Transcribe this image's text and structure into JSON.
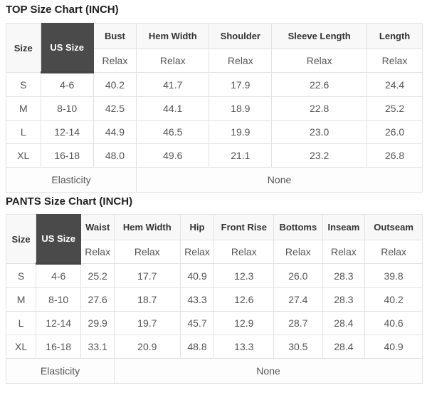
{
  "colors": {
    "page_background": "#ffffff",
    "us_size_header_bg": "#4a4a4a",
    "us_size_header_text": "#ffffff",
    "header_row_bg": "#f8f8f8",
    "header_text": "#333333",
    "cell_text": "#555555",
    "title_text": "#1f1f1f",
    "border": "#e2e2e2"
  },
  "tables": [
    {
      "title": "TOP Size Chart (INCH)",
      "corner": {
        "size_label": "Size",
        "us_size_label": "US Size"
      },
      "fit_label": "Relax",
      "columns": [
        "Bust",
        "Hem Width",
        "Shoulder",
        "Sleeve Length",
        "Length"
      ],
      "col_widths": [
        "8.3%",
        "12.7%",
        "10.3%",
        "17.5%",
        "15.0%",
        "22.9%",
        "13.3%"
      ],
      "rows": [
        {
          "size": "S",
          "us_size": "4-6",
          "values": [
            "40.2",
            "41.7",
            "17.9",
            "22.6",
            "24.4"
          ]
        },
        {
          "size": "M",
          "us_size": "8-10",
          "values": [
            "42.5",
            "44.1",
            "18.9",
            "22.8",
            "25.2"
          ]
        },
        {
          "size": "L",
          "us_size": "12-14",
          "values": [
            "44.9",
            "46.5",
            "19.9",
            "23.0",
            "26.0"
          ]
        },
        {
          "size": "XL",
          "us_size": "16-18",
          "values": [
            "48.0",
            "49.6",
            "21.1",
            "23.2",
            "26.8"
          ]
        }
      ],
      "footer": {
        "label": "Elasticity",
        "value": "None",
        "label_colspan": 3,
        "value_colspan": 4
      }
    },
    {
      "title": "PANTS Size Chart (INCH)",
      "corner": {
        "size_label": "Size",
        "us_size_label": "US Size"
      },
      "fit_label": "Relax",
      "columns": [
        "Waist",
        "Hem Width",
        "Hip",
        "Front Rise",
        "Bottoms",
        "Inseam",
        "Outseam"
      ],
      "col_widths": [
        "7.2%",
        "10.8%",
        "8.0%",
        "15.8%",
        "8.2%",
        "14.3%",
        "11.7%",
        "10.2%",
        "13.8%"
      ],
      "rows": [
        {
          "size": "S",
          "us_size": "4-6",
          "values": [
            "25.2",
            "17.7",
            "40.9",
            "12.3",
            "26.0",
            "28.3",
            "39.8"
          ]
        },
        {
          "size": "M",
          "us_size": "8-10",
          "values": [
            "27.6",
            "18.7",
            "43.3",
            "12.6",
            "27.4",
            "28.3",
            "40.2"
          ]
        },
        {
          "size": "L",
          "us_size": "12-14",
          "values": [
            "29.9",
            "19.7",
            "45.7",
            "12.9",
            "28.7",
            "28.4",
            "40.6"
          ]
        },
        {
          "size": "XL",
          "us_size": "16-18",
          "values": [
            "33.1",
            "20.9",
            "48.8",
            "13.3",
            "30.5",
            "28.4",
            "40.9"
          ]
        }
      ],
      "footer": {
        "label": "Elasticity",
        "value": "None",
        "label_colspan": 3,
        "value_colspan": 6
      }
    }
  ]
}
